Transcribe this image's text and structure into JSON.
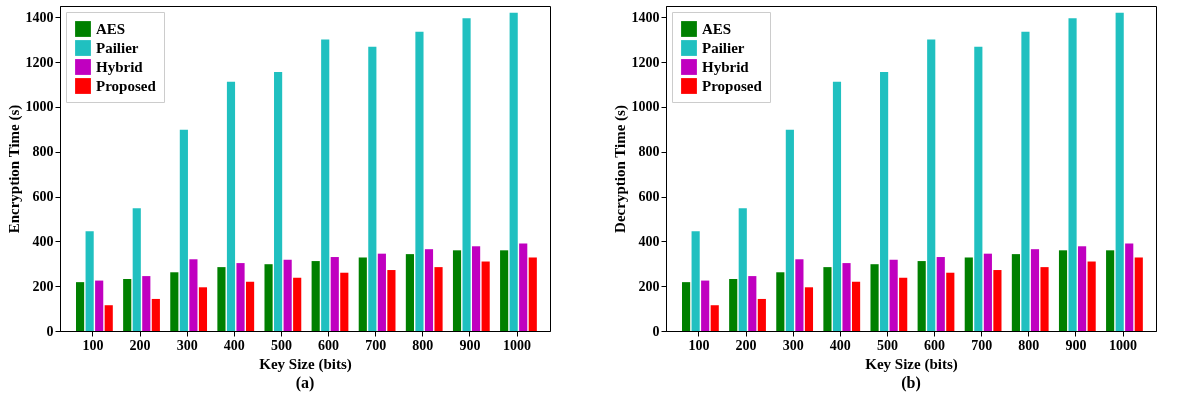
{
  "chart_data": [
    {
      "type": "bar",
      "title": "(a)",
      "xlabel": "Key Size (bits)",
      "ylabel": "Encryption Time (s)",
      "categories": [
        "100",
        "200",
        "300",
        "400",
        "500",
        "600",
        "700",
        "800",
        "900",
        "1000"
      ],
      "ylim": [
        0,
        1450
      ],
      "yticks": [
        0,
        200,
        400,
        600,
        800,
        1000,
        1200,
        1400
      ],
      "grid": false,
      "legend": "top left",
      "series": [
        {
          "name": "AES",
          "color": "#008000",
          "values": [
            218,
            232,
            262,
            285,
            298,
            312,
            328,
            343,
            360,
            360
          ]
        },
        {
          "name": "Pailier",
          "color": "#20c0c0",
          "values": [
            445,
            548,
            898,
            1112,
            1155,
            1300,
            1268,
            1335,
            1395,
            1420
          ]
        },
        {
          "name": "Hybrid",
          "color": "#c000c0",
          "values": [
            225,
            245,
            320,
            303,
            318,
            330,
            345,
            365,
            378,
            390
          ]
        },
        {
          "name": "Proposed",
          "color": "#ff0000",
          "values": [
            115,
            143,
            195,
            220,
            238,
            260,
            272,
            285,
            310,
            328
          ]
        }
      ]
    },
    {
      "type": "bar",
      "title": "(b)",
      "xlabel": "Key Size (bits)",
      "ylabel": "Decryption Time (s)",
      "categories": [
        "100",
        "200",
        "300",
        "400",
        "500",
        "600",
        "700",
        "800",
        "900",
        "1000"
      ],
      "ylim": [
        0,
        1450
      ],
      "yticks": [
        0,
        200,
        400,
        600,
        800,
        1000,
        1200,
        1400
      ],
      "grid": false,
      "legend": "top left",
      "series": [
        {
          "name": "AES",
          "color": "#008000",
          "values": [
            218,
            232,
            262,
            285,
            298,
            312,
            328,
            343,
            360,
            360
          ]
        },
        {
          "name": "Pailier",
          "color": "#20c0c0",
          "values": [
            445,
            548,
            898,
            1112,
            1155,
            1300,
            1268,
            1335,
            1395,
            1420
          ]
        },
        {
          "name": "Hybrid",
          "color": "#c000c0",
          "values": [
            225,
            245,
            320,
            303,
            318,
            330,
            345,
            365,
            378,
            390
          ]
        },
        {
          "name": "Proposed",
          "color": "#ff0000",
          "values": [
            115,
            143,
            195,
            220,
            238,
            260,
            272,
            285,
            310,
            328
          ]
        }
      ]
    }
  ]
}
